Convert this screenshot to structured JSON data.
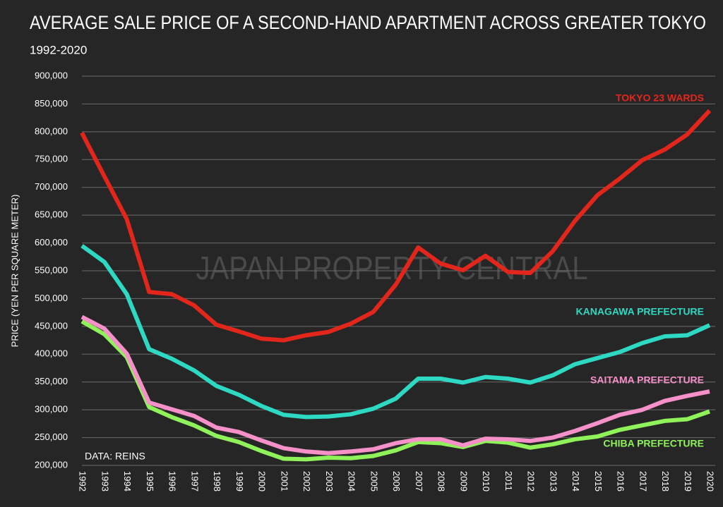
{
  "chart_data": {
    "type": "line",
    "title": "AVERAGE SALE PRICE OF A SECOND-HAND APARTMENT ACROSS GREATER TOKYO",
    "subtitle": "1992-2020",
    "y_label": "PRICE (YEN PER SQUARE METER)",
    "watermark": "JAPAN PROPERTY CENTRAL",
    "source": "DATA: REINS",
    "x": [
      1992,
      1993,
      1994,
      1995,
      1996,
      1997,
      1998,
      1999,
      2000,
      2001,
      2002,
      2003,
      2004,
      2005,
      2006,
      2007,
      2008,
      2009,
      2010,
      2011,
      2012,
      2013,
      2014,
      2015,
      2016,
      2017,
      2018,
      2019,
      2020
    ],
    "xlim": [
      1992,
      2020
    ],
    "xticks": [
      1992,
      1993,
      1994,
      1995,
      1996,
      1997,
      1998,
      1999,
      2000,
      2001,
      2002,
      2003,
      2004,
      2005,
      2006,
      2007,
      2008,
      2009,
      2010,
      2011,
      2012,
      2013,
      2014,
      2015,
      2016,
      2017,
      2018,
      2019,
      2020
    ],
    "ylim": [
      200000,
      900000
    ],
    "yticks": [
      {
        "value": 200000,
        "label": "200,000"
      },
      {
        "value": 250000,
        "label": "250,000"
      },
      {
        "value": 300000,
        "label": "300,000"
      },
      {
        "value": 350000,
        "label": "350,000"
      },
      {
        "value": 400000,
        "label": "400,000"
      },
      {
        "value": 450000,
        "label": "450,000"
      },
      {
        "value": 500000,
        "label": "500,000"
      },
      {
        "value": 550000,
        "label": "550,000"
      },
      {
        "value": 600000,
        "label": "600,000"
      },
      {
        "value": 650000,
        "label": "650,000"
      },
      {
        "value": 700000,
        "label": "700,000"
      },
      {
        "value": 750000,
        "label": "750,000"
      },
      {
        "value": 800000,
        "label": "800,000"
      },
      {
        "value": 850000,
        "label": "850,000"
      },
      {
        "value": 900000,
        "label": "900,000"
      }
    ],
    "grid": true,
    "series": [
      {
        "name": "TOKYO 23 WARDS",
        "color": "#e3261c",
        "values": [
          798000,
          720000,
          643000,
          512000,
          508000,
          488000,
          453000,
          441000,
          428000,
          425000,
          434000,
          440000,
          455000,
          476000,
          525000,
          592000,
          563000,
          551000,
          577000,
          548000,
          546000,
          585000,
          640000,
          686000,
          716000,
          749000,
          768000,
          795000,
          838000
        ]
      },
      {
        "name": "KANAGAWA PREFECTURE",
        "color": "#2ed9c3",
        "values": [
          595000,
          566000,
          508000,
          409000,
          392000,
          371000,
          343000,
          327000,
          307000,
          291000,
          287000,
          288000,
          292000,
          302000,
          320000,
          356000,
          356000,
          349000,
          359000,
          356000,
          349000,
          362000,
          382000,
          393000,
          404000,
          420000,
          432000,
          434000,
          452000
        ]
      },
      {
        "name": "SAITAMA PREFECTURE",
        "color": "#f590c8",
        "values": [
          467000,
          446000,
          401000,
          313000,
          301000,
          289000,
          268000,
          260000,
          245000,
          231000,
          225000,
          222000,
          225000,
          229000,
          240000,
          247000,
          247000,
          236000,
          248000,
          247000,
          244000,
          250000,
          262000,
          276000,
          291000,
          300000,
          316000,
          325000,
          333000
        ]
      },
      {
        "name": "CHIBA PREFECTURE",
        "color": "#8ff25a",
        "values": [
          459000,
          436000,
          395000,
          305000,
          287000,
          272000,
          253000,
          242000,
          226000,
          212000,
          211000,
          214000,
          213000,
          217000,
          227000,
          242000,
          240000,
          233000,
          244000,
          241000,
          232000,
          238000,
          247000,
          252000,
          264000,
          272000,
          280000,
          283000,
          297000
        ]
      }
    ]
  }
}
